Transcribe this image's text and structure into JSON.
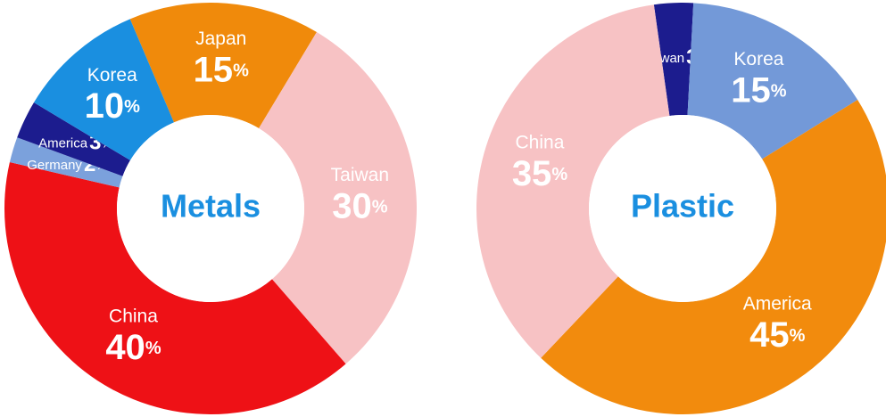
{
  "chart_data": [
    {
      "type": "donut",
      "title": "Metals",
      "categories": [
        "Japan",
        "Taiwan",
        "China",
        "Germany",
        "America",
        "Korea"
      ],
      "values": [
        15,
        30,
        40,
        2,
        3,
        10
      ],
      "value_labels": [
        "15%",
        "30%",
        "40%",
        "2%",
        "3%",
        "10%"
      ],
      "colors": [
        "#f08a0b",
        "#f7c2c4",
        "#ee1116",
        "#7ba1dc",
        "#1c1c8e",
        "#1a8fe0"
      ]
    },
    {
      "type": "donut",
      "title": "Plastic",
      "categories": [
        "Taiwan",
        "Korea",
        "America",
        "China"
      ],
      "values": [
        3,
        15,
        45,
        35
      ],
      "value_labels": [
        "3%",
        "15%",
        "45%",
        "35%"
      ],
      "colors": [
        "#1c1c8e",
        "#7399d8",
        "#f28b0d",
        "#f7c2c4"
      ]
    }
  ]
}
